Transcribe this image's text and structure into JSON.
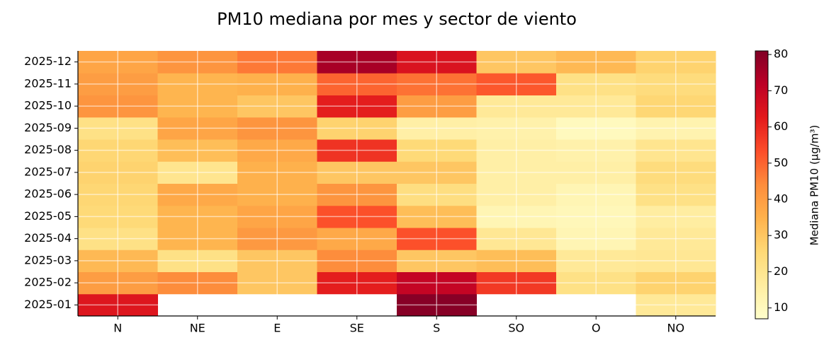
{
  "chart_data": {
    "type": "heatmap",
    "title": "PM10 mediana por mes y sector de viento",
    "x": [
      "N",
      "NE",
      "E",
      "SE",
      "S",
      "SO",
      "O",
      "NO"
    ],
    "y": [
      "2025-01",
      "2025-02",
      "2025-03",
      "2025-04",
      "2025-05",
      "2025-06",
      "2025-07",
      "2025-08",
      "2025-09",
      "2025-10",
      "2025-11",
      "2025-12"
    ],
    "z": [
      [
        64,
        null,
        null,
        null,
        80,
        null,
        null,
        18
      ],
      [
        40,
        44,
        30,
        62,
        70,
        57,
        22,
        27
      ],
      [
        33,
        22,
        30,
        44,
        30,
        32,
        18,
        19
      ],
      [
        22,
        34,
        41,
        37,
        53,
        19,
        12,
        18
      ],
      [
        25,
        34,
        38,
        53,
        32,
        12,
        11,
        16
      ],
      [
        26,
        37,
        35,
        42,
        23,
        15,
        12,
        22
      ],
      [
        27,
        20,
        35,
        30,
        30,
        15,
        15,
        24
      ],
      [
        26,
        32,
        37,
        58,
        25,
        15,
        14,
        20
      ],
      [
        22,
        38,
        42,
        27,
        15,
        14,
        10,
        13
      ],
      [
        42,
        34,
        30,
        62,
        40,
        18,
        18,
        26
      ],
      [
        40,
        34,
        35,
        50,
        48,
        52,
        22,
        24
      ],
      [
        38,
        42,
        47,
        75,
        65,
        30,
        33,
        27
      ]
    ],
    "cmap": "YlOrRd",
    "colorbar_label": "Mediana PM10 (µg/m³)",
    "clim": [
      7,
      81
    ],
    "cticks": [
      10,
      20,
      30,
      40,
      50,
      60,
      70,
      80
    ],
    "grid": true
  }
}
